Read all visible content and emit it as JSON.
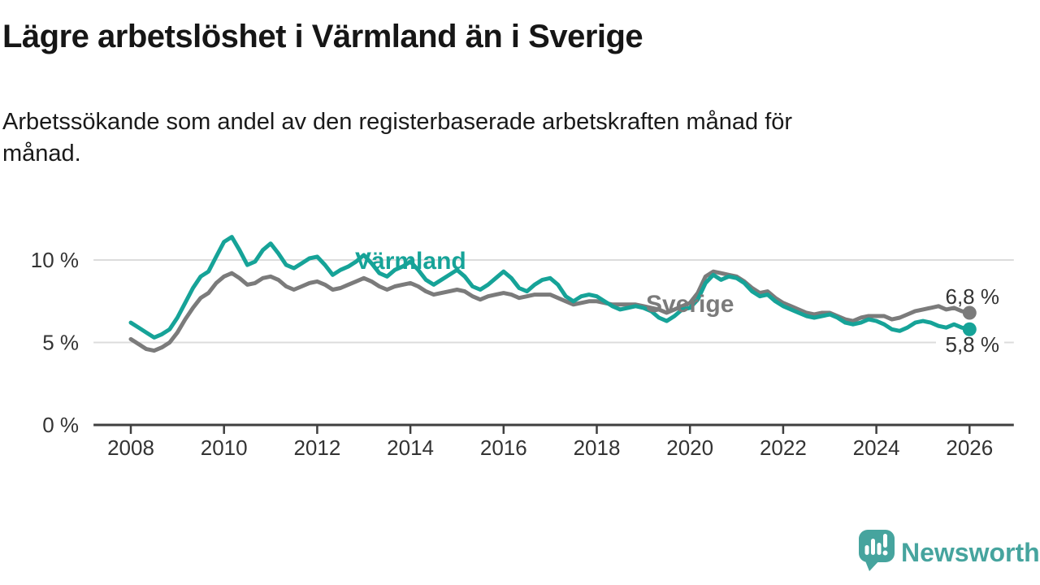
{
  "header": {
    "title": "Lägre arbetslöshet i Värmland än i Sverige",
    "subtitle": "Arbetssökande som andel av den registerbaserade arbetskraften månad för månad.",
    "subtitle_line1": "Arbetssökande som andel av den registerbaserade arbetskraften månad för",
    "subtitle_line2": "månad."
  },
  "chart_data": {
    "type": "line",
    "title": "Lägre arbetslöshet i Värmland än i Sverige",
    "xlabel": "",
    "ylabel": "",
    "grid": "horizontal",
    "legend_position": "inline-labels",
    "x_start_year": 2008,
    "x_step_months": 2,
    "x_ticks": [
      "2008",
      "2010",
      "2012",
      "2014",
      "2016",
      "2018",
      "2020",
      "2022",
      "2024",
      "2026"
    ],
    "y_ticks": [
      {
        "value": 0,
        "label": "0 %"
      },
      {
        "value": 5,
        "label": "5 %"
      },
      {
        "value": 10,
        "label": "10 %"
      }
    ],
    "ylim": [
      0,
      12.5
    ],
    "xlim_years": [
      2007.2,
      2026.95
    ],
    "colors": {
      "varmland": "#16a398",
      "sverige": "#7b7b7b",
      "grid": "#dcdcdc",
      "axis": "#3f3f3f",
      "tick_text": "#333333"
    },
    "series": [
      {
        "name": "Värmland",
        "color": "#16a398",
        "end_label": "5,8 %",
        "end_value": 5.8,
        "values": [
          6.2,
          5.9,
          5.6,
          5.3,
          5.5,
          5.8,
          6.5,
          7.4,
          8.3,
          9.0,
          9.3,
          10.2,
          11.1,
          11.4,
          10.6,
          9.7,
          9.9,
          10.6,
          11.0,
          10.4,
          9.7,
          9.5,
          9.8,
          10.1,
          10.2,
          9.7,
          9.1,
          9.4,
          9.6,
          9.9,
          10.3,
          9.8,
          9.2,
          9.0,
          9.4,
          9.6,
          9.9,
          9.4,
          8.8,
          8.5,
          8.8,
          9.1,
          9.4,
          9.0,
          8.4,
          8.2,
          8.5,
          8.9,
          9.3,
          8.9,
          8.3,
          8.1,
          8.5,
          8.8,
          8.9,
          8.5,
          7.8,
          7.5,
          7.8,
          7.9,
          7.8,
          7.5,
          7.2,
          7.0,
          7.1,
          7.2,
          7.1,
          6.9,
          6.5,
          6.3,
          6.6,
          7.0,
          7.1,
          7.6,
          8.6,
          9.1,
          8.8,
          9.0,
          8.9,
          8.6,
          8.1,
          7.8,
          7.9,
          7.5,
          7.2,
          7.0,
          6.8,
          6.6,
          6.5,
          6.6,
          6.7,
          6.5,
          6.2,
          6.1,
          6.2,
          6.4,
          6.3,
          6.1,
          5.8,
          5.7,
          5.9,
          6.2,
          6.3,
          6.2,
          6.0,
          5.9,
          6.1,
          5.9,
          5.8
        ]
      },
      {
        "name": "Sverige",
        "color": "#7b7b7b",
        "end_label": "6,8 %",
        "end_value": 6.8,
        "values": [
          5.2,
          4.9,
          4.6,
          4.5,
          4.7,
          5.0,
          5.6,
          6.4,
          7.1,
          7.7,
          8.0,
          8.6,
          9.0,
          9.2,
          8.9,
          8.5,
          8.6,
          8.9,
          9.0,
          8.8,
          8.4,
          8.2,
          8.4,
          8.6,
          8.7,
          8.5,
          8.2,
          8.3,
          8.5,
          8.7,
          8.9,
          8.7,
          8.4,
          8.2,
          8.4,
          8.5,
          8.6,
          8.4,
          8.1,
          7.9,
          8.0,
          8.1,
          8.2,
          8.1,
          7.8,
          7.6,
          7.8,
          7.9,
          8.0,
          7.9,
          7.7,
          7.8,
          7.9,
          7.9,
          7.9,
          7.7,
          7.5,
          7.3,
          7.4,
          7.5,
          7.5,
          7.4,
          7.3,
          7.3,
          7.3,
          7.3,
          7.2,
          7.1,
          7.0,
          6.8,
          7.0,
          7.2,
          7.4,
          8.0,
          9.0,
          9.3,
          9.2,
          9.1,
          9.0,
          8.7,
          8.3,
          8.0,
          8.1,
          7.7,
          7.4,
          7.2,
          7.0,
          6.8,
          6.7,
          6.8,
          6.8,
          6.6,
          6.4,
          6.3,
          6.5,
          6.6,
          6.6,
          6.6,
          6.4,
          6.5,
          6.7,
          6.9,
          7.0,
          7.1,
          7.2,
          7.0,
          7.1,
          6.9,
          6.8
        ]
      }
    ]
  },
  "footer": {
    "brand": "Newsworthy",
    "brand_color": "#46a49e"
  }
}
